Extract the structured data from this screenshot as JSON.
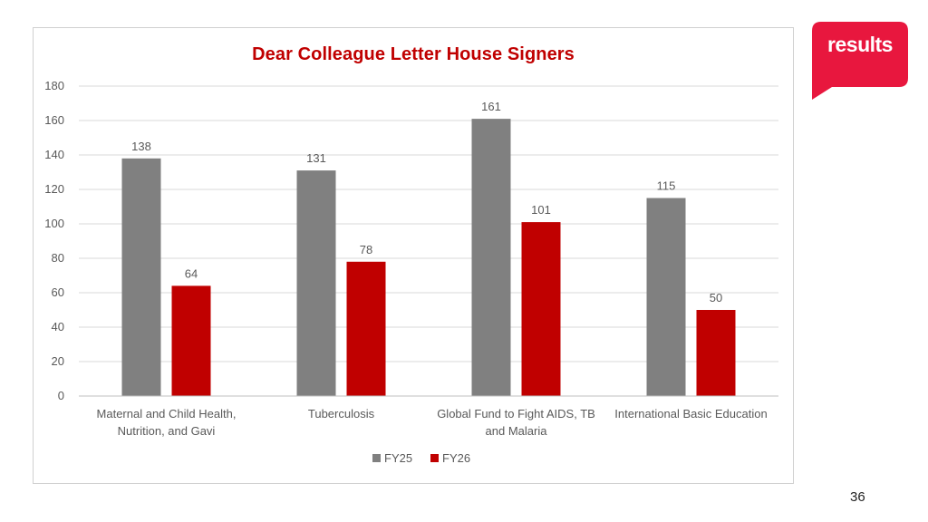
{
  "colors": {
    "accent": "#c00000",
    "fy25": "#808080",
    "fy26": "#c00000",
    "grid": "#d9d9d9",
    "text": "#595959",
    "logo_bg": "#e8173e"
  },
  "logo": {
    "text": "results"
  },
  "page": {
    "number": "36"
  },
  "chart_data": {
    "type": "bar",
    "title": "Dear Colleague Letter House Signers",
    "categories": [
      [
        "Maternal and Child Health,",
        "Nutrition, and Gavi"
      ],
      [
        "Tuberculosis"
      ],
      [
        "Global Fund to Fight AIDS, TB",
        "and Malaria"
      ],
      [
        "International Basic Education"
      ]
    ],
    "series": [
      {
        "name": "FY25",
        "values": [
          138,
          131,
          161,
          115
        ]
      },
      {
        "name": "FY26",
        "values": [
          64,
          78,
          101,
          50
        ]
      }
    ],
    "ylim": [
      0,
      180
    ],
    "yticks": [
      0,
      20,
      40,
      60,
      80,
      100,
      120,
      140,
      160,
      180
    ],
    "grid": true,
    "legend_position": "bottom",
    "data_labels": true
  }
}
